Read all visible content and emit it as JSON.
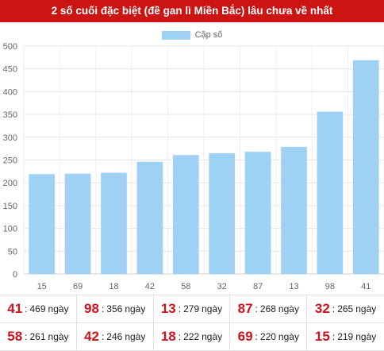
{
  "header": {
    "title": "2 số cuối đặc biệt (đề gan lì Miền Bắc) lâu chưa về nhất"
  },
  "colors": {
    "header_bg": "#cc1412",
    "bar": "#9fd1f4",
    "number": "#d0101a"
  },
  "chart_data": {
    "type": "bar",
    "categories": [
      "15",
      "69",
      "18",
      "42",
      "58",
      "32",
      "87",
      "13",
      "98",
      "41"
    ],
    "series": [
      {
        "name": "Cặp số",
        "values": [
          219,
          220,
          222,
          246,
          261,
          265,
          268,
          279,
          356,
          469
        ]
      }
    ],
    "ylim": [
      0,
      500
    ],
    "yticks": [
      0,
      50,
      100,
      150,
      200,
      250,
      300,
      350,
      400,
      450,
      500
    ],
    "grid": true,
    "legend": "top-center"
  },
  "stats": {
    "separator": ":",
    "unit": "ngày",
    "rows": [
      [
        {
          "num": "41",
          "days": "469"
        },
        {
          "num": "98",
          "days": "356"
        },
        {
          "num": "13",
          "days": "279"
        },
        {
          "num": "87",
          "days": "268"
        },
        {
          "num": "32",
          "days": "265"
        }
      ],
      [
        {
          "num": "58",
          "days": "261"
        },
        {
          "num": "42",
          "days": "246"
        },
        {
          "num": "18",
          "days": "222"
        },
        {
          "num": "69",
          "days": "220"
        },
        {
          "num": "15",
          "days": "219"
        }
      ]
    ]
  }
}
